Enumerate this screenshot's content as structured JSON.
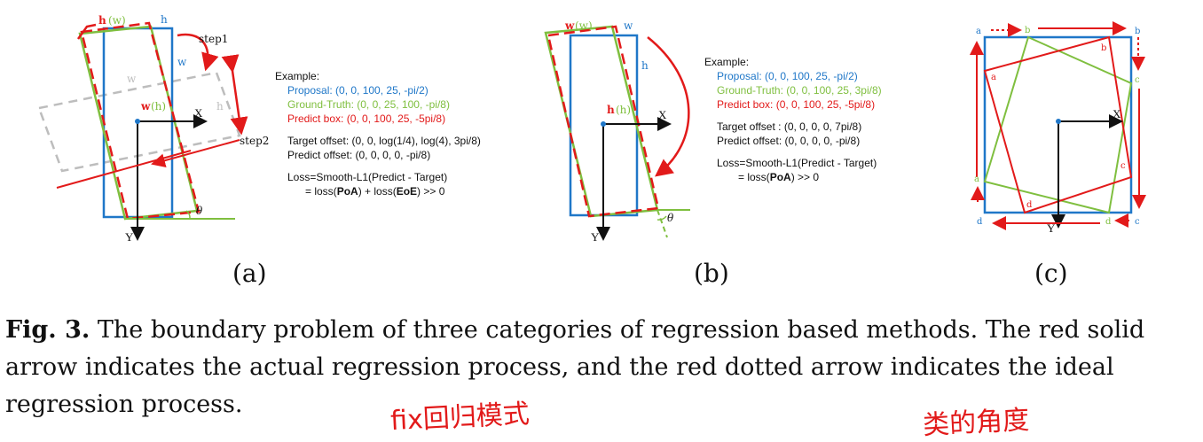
{
  "panel_a": {
    "labels": {
      "h_w": "h",
      "h_w_paren": "(w)",
      "h_top": "h",
      "w_right": "w",
      "w_gray": "w",
      "h_gray": "h",
      "w_h": "w",
      "w_h_paren": "(h)",
      "x_axis": "X",
      "y_axis": "Y",
      "theta": "θ",
      "step1": "step1",
      "step2": "step2"
    },
    "example": {
      "title": "Example:",
      "proposal": "Proposal: (0, 0, 100, 25, -pi/2)",
      "ground_truth": "Ground-Truth: (0, 0, 25, 100, -pi/8)",
      "predict_box": "Predict box: (0, 0, 100, 25, -5pi/8)",
      "target_offset": "Target offset: (0, 0, log(1/4), log(4), 3pi/8)",
      "predict_offset": "Predict offset: (0, 0, 0, 0, -pi/8)",
      "loss_line1": "Loss=Smooth-L1(Predict - Target)",
      "loss_line2_prefix": "= loss(",
      "loss_poa": "PoA",
      "loss_mid": ") + loss(",
      "loss_eoe": "EoE",
      "loss_suffix": ") >> 0"
    },
    "sublabel": "(a)"
  },
  "panel_b": {
    "labels": {
      "w_w": "w",
      "w_w_paren": "(w)",
      "w_top": "w",
      "h_right": "h",
      "h_h": "h",
      "h_h_paren": "(h)",
      "x_axis": "X",
      "y_axis": "Y",
      "theta": "θ"
    },
    "example": {
      "title": "Example:",
      "proposal": "Proposal: (0, 0, 100, 25, -pi/2)",
      "ground_truth": "Ground-Truth: (0, 0, 100, 25, 3pi/8)",
      "predict_box": "Predict box: (0, 0, 100, 25, -5pi/8)",
      "target_offset": "Target offset : (0, 0, 0, 0, 7pi/8)",
      "predict_offset": "Predict offset: (0, 0, 0, 0, -pi/8)",
      "loss_line1": "Loss=Smooth-L1(Predict - Target)",
      "loss_line2_prefix": "= loss(",
      "loss_poa": "PoA",
      "loss_suffix": ") >> 0"
    },
    "sublabel": "(b)"
  },
  "panel_c": {
    "labels": {
      "a": "a",
      "b": "b",
      "c": "c",
      "d": "d",
      "x_axis": "X",
      "y_axis": "Y"
    },
    "sublabel": "(c)"
  },
  "caption": {
    "label": "Fig. 3.",
    "text": " The boundary problem of three categories of regression based methods. The red solid arrow indicates the actual regression process, and the red dotted arrow indicates the ideal regression process."
  },
  "handwriting": {
    "note1": "fix回归模式",
    "note2": "类的角度"
  },
  "colors": {
    "blue": "#1f77c8",
    "green": "#7fbf3f",
    "red": "#e21a1a",
    "gray": "#bdbdbd"
  }
}
